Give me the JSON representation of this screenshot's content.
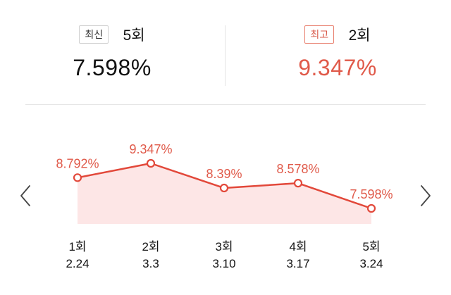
{
  "summary": {
    "latest": {
      "badge": "최신",
      "round": "5회",
      "value": "7.598%"
    },
    "best": {
      "badge": "최고",
      "round": "2회",
      "value": "9.347%"
    }
  },
  "nav": {
    "prev_icon": "chevron-left-icon",
    "next_icon": "chevron-right-icon"
  },
  "colors": {
    "accent": "#e05a4a",
    "line": "#e2483a",
    "area": "#fde6e6",
    "badge_border": "#cfcfcf",
    "best_badge_border": "#e8806f"
  },
  "chart_data": {
    "type": "area",
    "categories": [
      {
        "round": "1회",
        "date": "2.24"
      },
      {
        "round": "2회",
        "date": "3.3"
      },
      {
        "round": "3회",
        "date": "3.10"
      },
      {
        "round": "4회",
        "date": "3.17"
      },
      {
        "round": "5회",
        "date": "3.24"
      }
    ],
    "values": [
      8.792,
      9.347,
      8.39,
      8.578,
      7.598
    ],
    "data_labels": [
      "8.792%",
      "9.347%",
      "8.39%",
      "8.578%",
      "7.598%"
    ],
    "unit": "%",
    "grid": false,
    "legend": "none"
  }
}
